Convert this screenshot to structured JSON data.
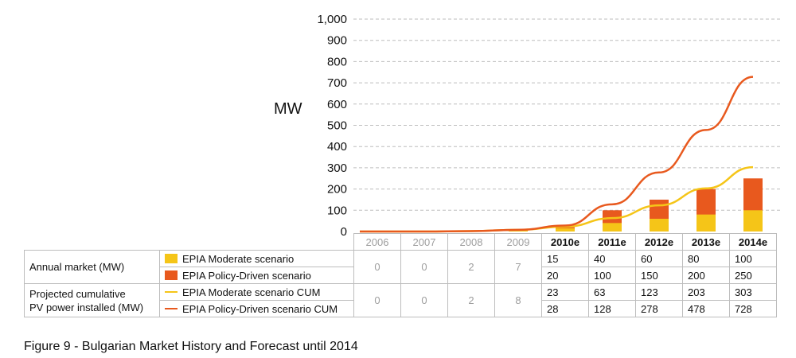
{
  "chart_data": {
    "type": "bar+line",
    "unit_label": "MW",
    "ylim": [
      0,
      1000
    ],
    "yticks": [
      "0",
      "100",
      "200",
      "300",
      "400",
      "500",
      "600",
      "700",
      "800",
      "900",
      "1,000"
    ],
    "categories": [
      "2006",
      "2007",
      "2008",
      "2009",
      "2010e",
      "2011e",
      "2012e",
      "2013e",
      "2014e"
    ],
    "forecast_from": "2010e",
    "grid": "horizontal dashed",
    "bar_series": [
      {
        "name": "EPIA Moderate scenario",
        "color": "#f5c518",
        "values": [
          0,
          0,
          2,
          7,
          15,
          40,
          60,
          80,
          100
        ]
      },
      {
        "name": "EPIA Policy-Driven scenario",
        "color": "#e8591e",
        "values": [
          0,
          0,
          2,
          7,
          20,
          100,
          150,
          200,
          250
        ]
      }
    ],
    "line_series": [
      {
        "name": "EPIA Moderate scenario CUM",
        "color": "#f5c518",
        "values": [
          0,
          0,
          2,
          8,
          23,
          63,
          123,
          203,
          303
        ]
      },
      {
        "name": "EPIA Policy-Driven scenario CUM",
        "color": "#e8591e",
        "values": [
          0,
          0,
          2,
          8,
          28,
          128,
          278,
          478,
          728
        ]
      }
    ]
  },
  "table": {
    "row_annual_label": "Annual market (MW)",
    "row_cum_label_1": "Projected cumulative",
    "row_cum_label_2": "PV power installed (MW)",
    "series_labels": {
      "moderate": "EPIA Moderate scenario",
      "policy": "EPIA Policy-Driven scenario",
      "moderate_cum": "EPIA Moderate scenario CUM",
      "policy_cum": "EPIA Policy-Driven scenario CUM"
    },
    "hist_annual": [
      "0",
      "0",
      "2",
      "7"
    ],
    "hist_cum": [
      "0",
      "0",
      "2",
      "8"
    ],
    "forecast_moderate": [
      "15",
      "40",
      "60",
      "80",
      "100"
    ],
    "forecast_policy": [
      "20",
      "100",
      "150",
      "200",
      "250"
    ],
    "forecast_moderate_cum": [
      "23",
      "63",
      "123",
      "203",
      "303"
    ],
    "forecast_policy_cum": [
      "28",
      "128",
      "278",
      "478",
      "728"
    ]
  },
  "caption": "Figure 9 - Bulgarian Market History and Forecast until 2014"
}
